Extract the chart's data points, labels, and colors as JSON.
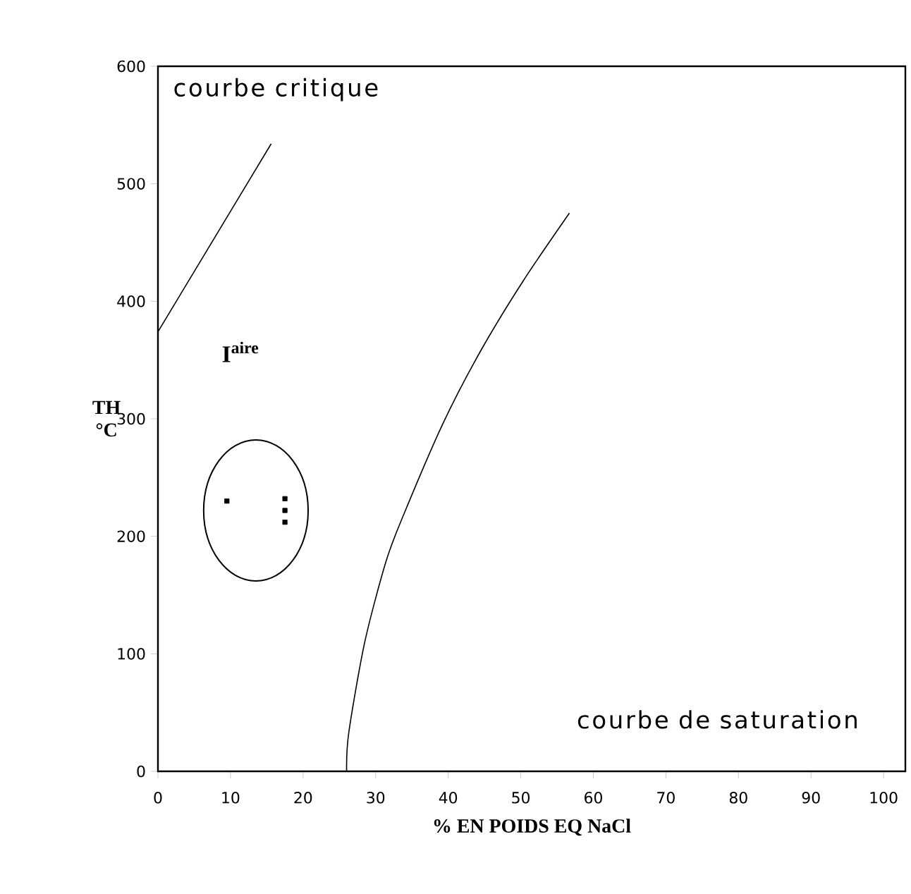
{
  "chart_data": {
    "type": "line",
    "xlabel": "% EN POIDS EQ NaCl",
    "ylabel": "TH °C",
    "xlim": [
      0,
      103
    ],
    "ylim": [
      0,
      600
    ],
    "xticks": [
      0,
      10,
      20,
      30,
      40,
      50,
      60,
      70,
      80,
      90,
      100
    ],
    "yticks": [
      0,
      100,
      200,
      300,
      400,
      500,
      600
    ],
    "grid": false,
    "series": [
      {
        "color": "#000000",
        "x": [
          0,
          15.6
        ],
        "values": [
          374,
          534
        ]
      },
      {
        "color": "#000000",
        "x": [
          26,
          26.3,
          28.5,
          31.4,
          33.7,
          39.2,
          44.4,
          50.3,
          56.7
        ],
        "values": [
          0,
          33,
          110,
          178,
          216,
          295,
          357,
          417,
          475
        ]
      },
      {
        "type": "scatter",
        "color": "#000000",
        "marker": "square",
        "x": [
          9.5,
          17.5,
          17.5,
          17.5
        ],
        "values": [
          230,
          232,
          222,
          212
        ]
      }
    ],
    "annotations": [
      "courbe critique",
      "courbe de saturation",
      "I$^{aire}$"
    ]
  }
}
